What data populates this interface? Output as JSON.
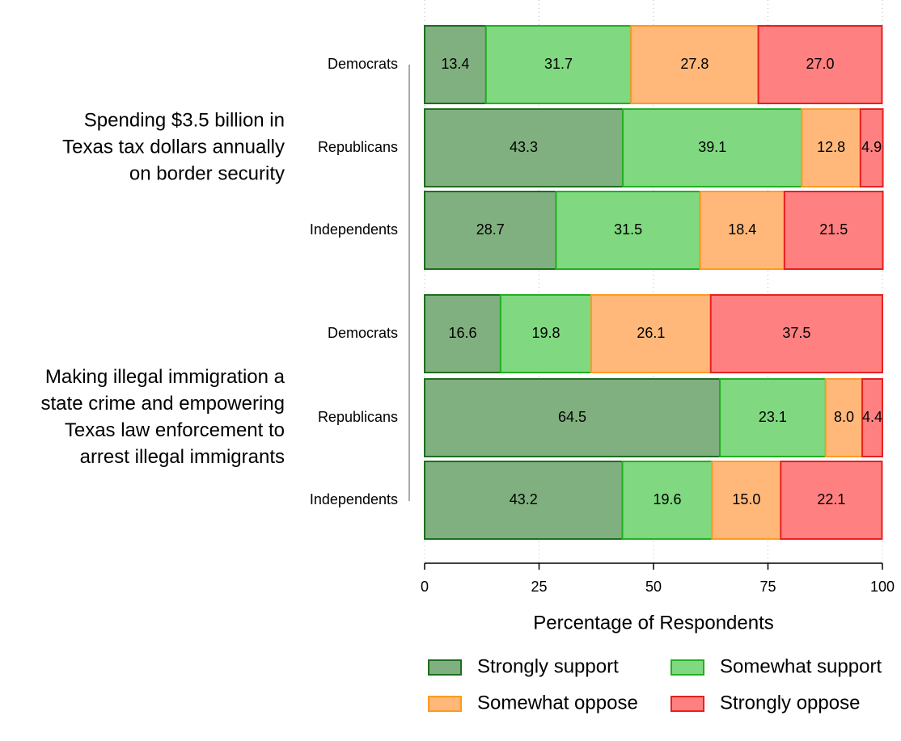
{
  "chart_data": {
    "type": "stacked_barh",
    "xlabel": "Percentage of Respondents",
    "xlim": [
      0,
      100
    ],
    "xticks": [
      0,
      25,
      50,
      75,
      100
    ],
    "grid": true,
    "groups": [
      {
        "label": [
          "Spending $3.5 billion in",
          "Texas tax dollars annually",
          "on border security"
        ]
      },
      {
        "label": [
          "Making illegal immigration a",
          "state crime and empowering",
          "Texas law enforcement to",
          "arrest illegal immigrants"
        ]
      }
    ],
    "categories": [
      "Democrats",
      "Republicans",
      "Independents",
      "Democrats",
      "Republicans",
      "Independents"
    ],
    "legend": "bottom",
    "series": [
      {
        "name": "Strongly support",
        "color": "#80b080",
        "edge": "#1e6e1e",
        "values": [
          13.4,
          43.3,
          28.7,
          16.6,
          64.5,
          43.2
        ],
        "value_labels": [
          "13.4",
          "43.3",
          "28.7",
          "16.6",
          "64.5",
          "43.2"
        ]
      },
      {
        "name": "Somewhat support",
        "color": "#80d880",
        "edge": "#22b022",
        "values": [
          31.7,
          39.1,
          31.5,
          19.8,
          23.1,
          19.6
        ],
        "value_labels": [
          "31.7",
          "39.1",
          "31.5",
          "19.8",
          "23.1",
          "19.6"
        ]
      },
      {
        "name": "Somewhat oppose",
        "color": "#ffb87a",
        "edge": "#ff9a22",
        "values": [
          27.8,
          12.8,
          18.4,
          26.1,
          8.0,
          15.0
        ],
        "value_labels": [
          "27.8",
          "12.8",
          "18.4",
          "26.1",
          "8.0",
          "15.0"
        ]
      },
      {
        "name": "Strongly oppose",
        "color": "#ff8080",
        "edge": "#e82020",
        "values": [
          27.0,
          4.9,
          21.5,
          37.5,
          4.4,
          22.1
        ],
        "value_labels": [
          "27.0",
          "4.9",
          "21.5",
          "37.5",
          "4.4",
          "22.1"
        ]
      }
    ]
  }
}
